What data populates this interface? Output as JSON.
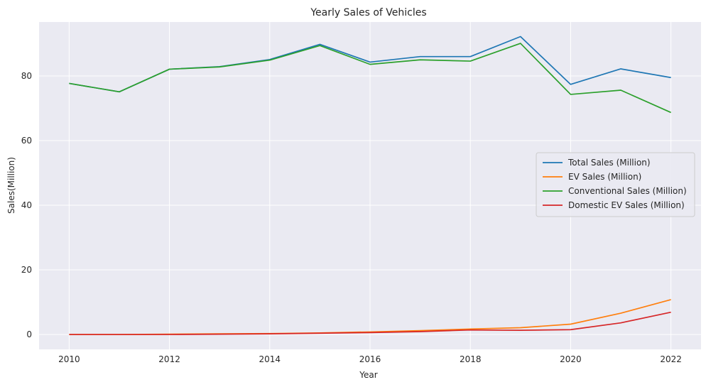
{
  "chart_data": {
    "type": "line",
    "title": "Yearly Sales of Vehicles",
    "xlabel": "Year",
    "ylabel": "Sales(Million)",
    "x": [
      2010,
      2011,
      2012,
      2013,
      2014,
      2015,
      2016,
      2017,
      2018,
      2019,
      2020,
      2021,
      2022
    ],
    "xlim": [
      2009.4,
      2022.6
    ],
    "ylim": [
      -4.6,
      96.7
    ],
    "xticks": [
      2010,
      2012,
      2014,
      2016,
      2018,
      2020,
      2022
    ],
    "yticks": [
      0,
      20,
      40,
      60,
      80
    ],
    "grid": true,
    "legend_position": "center-right",
    "background": "#eaeaf2",
    "series": [
      {
        "name": "Total Sales (Million)",
        "color": "#1f77b4",
        "values": [
          77.7,
          75.1,
          82.1,
          82.9,
          85.1,
          89.8,
          84.3,
          86.0,
          86.0,
          92.2,
          77.4,
          82.2,
          79.5
        ]
      },
      {
        "name": "EV Sales (Million)",
        "color": "#ff7f0e",
        "values": [
          0.0,
          0.0,
          0.1,
          0.2,
          0.3,
          0.5,
          0.8,
          1.2,
          1.7,
          2.1,
          3.2,
          6.6,
          10.8
        ]
      },
      {
        "name": "Conventional Sales (Million)",
        "color": "#2ca02c",
        "values": [
          77.7,
          75.1,
          82.1,
          82.8,
          84.9,
          89.4,
          83.6,
          85.0,
          84.6,
          90.1,
          74.3,
          75.6,
          68.7
        ]
      },
      {
        "name": "Domestic EV Sales (Million)",
        "color": "#d62728",
        "values": [
          0.0,
          0.0,
          0.0,
          0.1,
          0.2,
          0.4,
          0.6,
          0.9,
          1.4,
          1.3,
          1.5,
          3.6,
          6.9
        ]
      }
    ]
  }
}
